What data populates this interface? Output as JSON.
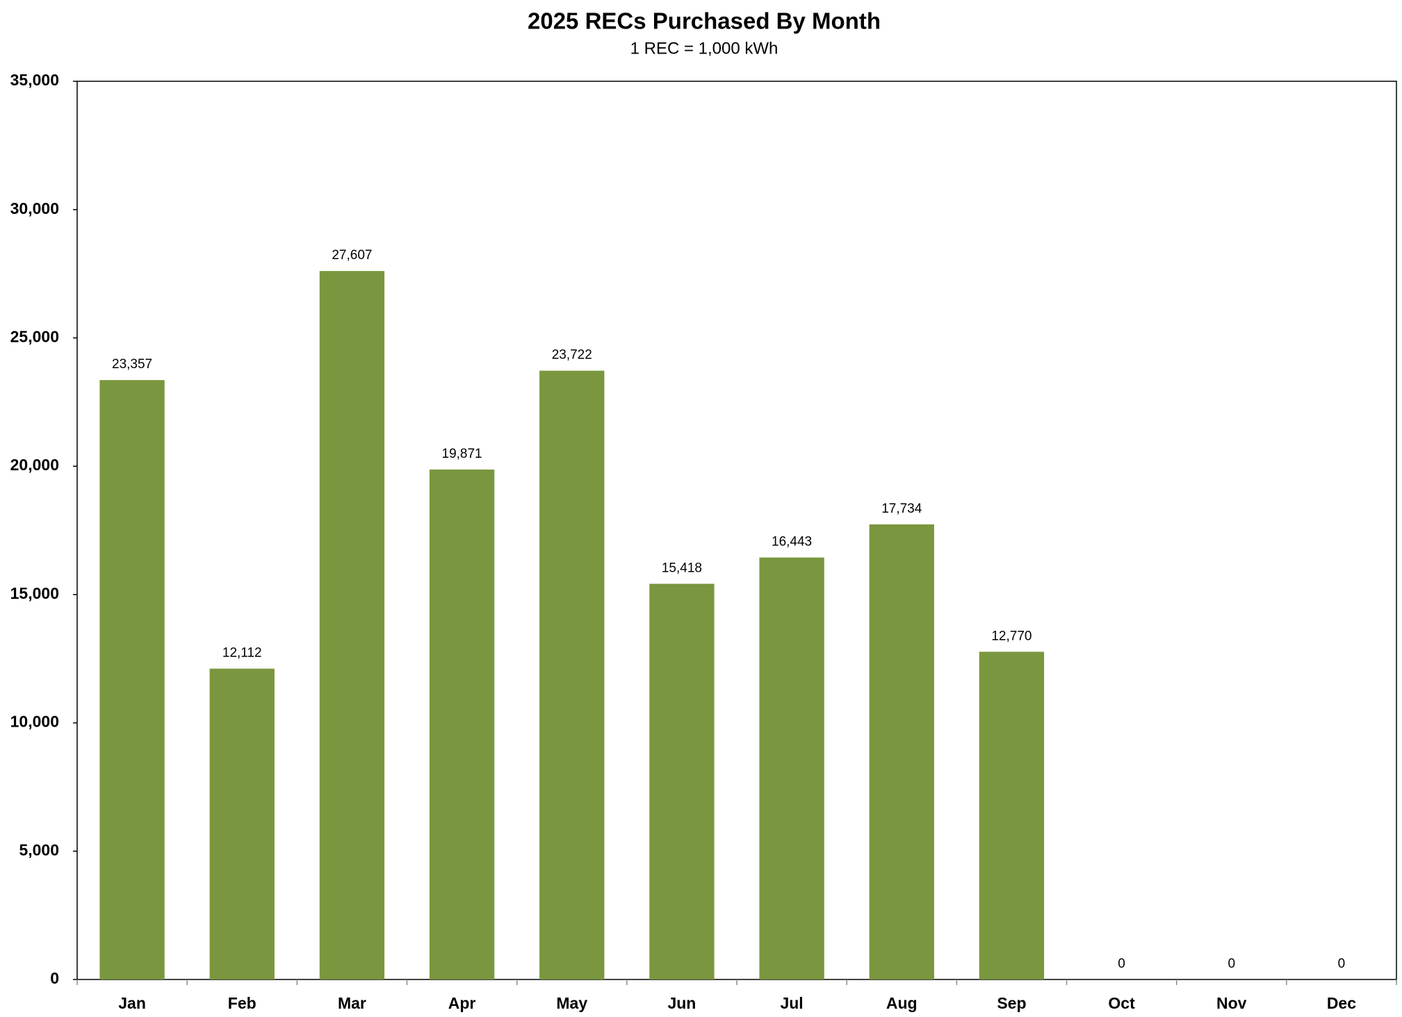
{
  "chart_data": {
    "type": "bar",
    "title": "2025 RECs Purchased By Month",
    "subtitle": "1 REC = 1,000 kWh",
    "categories": [
      "Jan",
      "Feb",
      "Mar",
      "Apr",
      "May",
      "Jun",
      "Jul",
      "Aug",
      "Sep",
      "Oct",
      "Nov",
      "Dec"
    ],
    "values": [
      23357,
      12112,
      27607,
      19871,
      23722,
      15418,
      16443,
      17734,
      12770,
      0,
      0,
      0
    ],
    "value_labels": [
      "23,357",
      "12,112",
      "27,607",
      "19,871",
      "23,722",
      "15,418",
      "16,443",
      "17,734",
      "12,770",
      "0",
      "0",
      "0"
    ],
    "color": "#7a963e",
    "ylim": [
      0,
      35000
    ],
    "yticks": [
      0,
      {
        "value": 5000,
        "label": "5,000"
      },
      {
        "value": 10000,
        "label": "10,000"
      },
      {
        "value": 15000,
        "label": "15,000"
      },
      {
        "value": 20000,
        "label": "20,000"
      },
      {
        "value": 25000,
        "label": "25,000"
      },
      {
        "value": 30000,
        "label": "30,000"
      },
      {
        "value": 35000,
        "label": "35,000"
      }
    ],
    "grid": false
  }
}
